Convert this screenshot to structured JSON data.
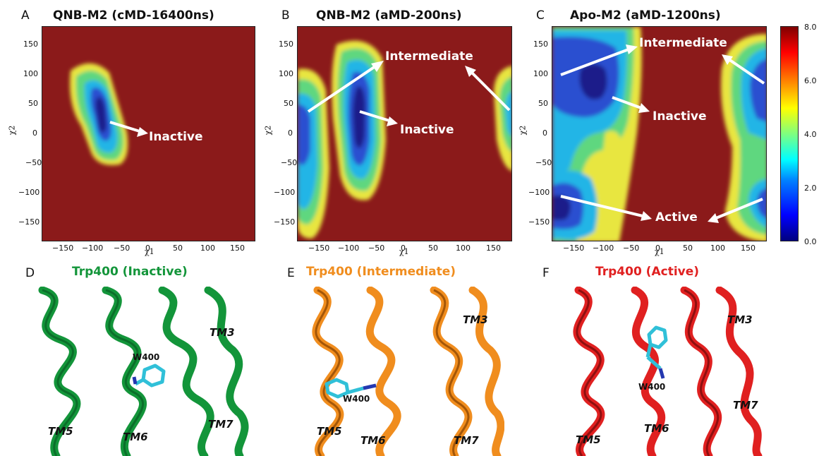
{
  "panels_top": [
    {
      "letter": "A",
      "title": "QNB-M2 (cMD-16400ns)",
      "xlabel": "χ1",
      "ylabel": "χ2",
      "annotations": [
        "Inactive"
      ]
    },
    {
      "letter": "B",
      "title": "QNB-M2 (aMD-200ns)",
      "xlabel": "χ1",
      "ylabel": "χ2",
      "annotations": [
        "Intermediate",
        "Inactive"
      ]
    },
    {
      "letter": "C",
      "title": "Apo-M2 (aMD-1200ns)",
      "xlabel": "χ1",
      "ylabel": "χ2",
      "annotations": [
        "Intermediate",
        "Inactive",
        "Active"
      ]
    }
  ],
  "x_ticks": [
    "−150",
    "−100",
    "−50",
    "0",
    "50",
    "100",
    "150"
  ],
  "y_ticks": [
    "150",
    "100",
    "50",
    "0",
    "−50",
    "−100",
    "−150"
  ],
  "colorbar_ticks": [
    "8.0",
    "6.0",
    "4.0",
    "2.0",
    "0.0"
  ],
  "panels_bottom": [
    {
      "letter": "D",
      "title": "Trp400 (Inactive)",
      "color": "#13953a",
      "labels": {
        "tm3": "TM3",
        "tm5": "TM5",
        "tm6": "TM6",
        "tm7": "TM7",
        "residue": "W400"
      }
    },
    {
      "letter": "E",
      "title": "Trp400 (Intermediate)",
      "color": "#f08d1e",
      "labels": {
        "tm3": "TM3",
        "tm5": "TM5",
        "tm6": "TM6",
        "tm7": "TM7",
        "residue": "W400"
      }
    },
    {
      "letter": "F",
      "title": "Trp400 (Active)",
      "color": "#e02020",
      "labels": {
        "tm3": "TM3",
        "tm5": "TM5",
        "tm6": "TM6",
        "tm7": "TM7",
        "residue": "W400"
      }
    }
  ],
  "chart_data": [
    {
      "type": "heatmap",
      "title": "QNB-M2 (cMD-16400ns)",
      "xlabel": "χ1",
      "ylabel": "χ2",
      "xlim": [
        -180,
        180
      ],
      "ylim": [
        -180,
        180
      ],
      "colorbar_range": [
        0.0,
        8.0
      ],
      "basins": [
        {
          "label": "Inactive",
          "chi1": -70,
          "chi2": 35
        }
      ]
    },
    {
      "type": "heatmap",
      "title": "QNB-M2 (aMD-200ns)",
      "xlabel": "χ1",
      "ylabel": "χ2",
      "xlim": [
        -180,
        180
      ],
      "ylim": [
        -180,
        180
      ],
      "colorbar_range": [
        0.0,
        8.0
      ],
      "basins": [
        {
          "label": "Inactive",
          "chi1": -75,
          "chi2": 30
        },
        {
          "label": "Intermediate",
          "chi1": -160,
          "chi2": 40
        }
      ]
    },
    {
      "type": "heatmap",
      "title": "Apo-M2 (aMD-1200ns)",
      "xlabel": "χ1",
      "ylabel": "χ2",
      "xlim": [
        -180,
        180
      ],
      "ylim": [
        -180,
        180
      ],
      "colorbar_range": [
        0.0,
        8.0
      ],
      "basins": [
        {
          "label": "Intermediate",
          "chi1": -160,
          "chi2": 110
        },
        {
          "label": "Inactive",
          "chi1": -75,
          "chi2": 70
        },
        {
          "label": "Active",
          "chi1": -160,
          "chi2": -110
        }
      ]
    }
  ]
}
